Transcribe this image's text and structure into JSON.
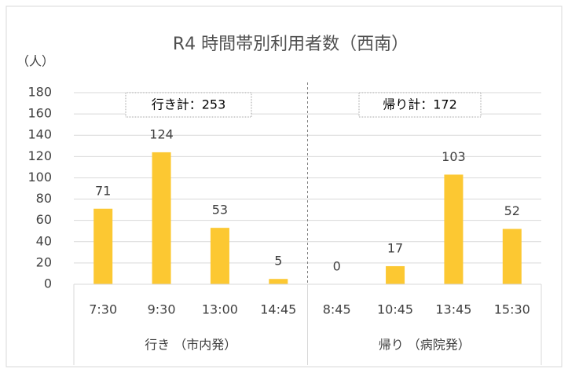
{
  "chart_data": {
    "type": "bar",
    "title": "R4 時間帯別利用者数（西南）",
    "y_label": "（人）",
    "categories": [
      "7:30",
      "9:30",
      "13:00",
      "14:45",
      "8:45",
      "10:45",
      "13:45",
      "15:30"
    ],
    "values": [
      71,
      124,
      53,
      5,
      0,
      17,
      103,
      52
    ],
    "color": "#fcc832",
    "group_labels": [
      "行き （市内発）",
      "帰り （病院発）"
    ],
    "annotations": [
      "行き計：253",
      "帰り計：172"
    ],
    "ylim": [
      0,
      180
    ],
    "yticks": [
      0,
      20,
      40,
      60,
      80,
      100,
      120,
      140,
      160,
      180
    ],
    "grid": true
  }
}
